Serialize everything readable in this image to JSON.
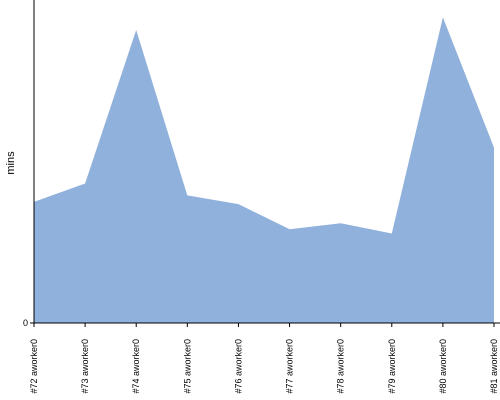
{
  "chart_data": {
    "type": "area",
    "title": "",
    "xlabel": "",
    "ylabel": "mins",
    "categories": [
      "#72 aworker0",
      "#73 aworker0",
      "#74 aworker0",
      "#75 aworker0",
      "#76 aworker0",
      "#77 aworker0",
      "#78 aworker0",
      "#79 aworker0",
      "#80 aworker0",
      "#81 aworker0"
    ],
    "series": [
      {
        "values": [
          37.5,
          43.2,
          90.7,
          39.5,
          36.8,
          29.0,
          30.9,
          27.7,
          94.6,
          54.3
        ]
      }
    ],
    "y_ticks": [
      "0"
    ],
    "ylim": [
      0,
      100
    ],
    "grid": false,
    "legend": "none",
    "colors": {
      "area_fill": "#8fb1db",
      "axis": "#000000"
    }
  }
}
